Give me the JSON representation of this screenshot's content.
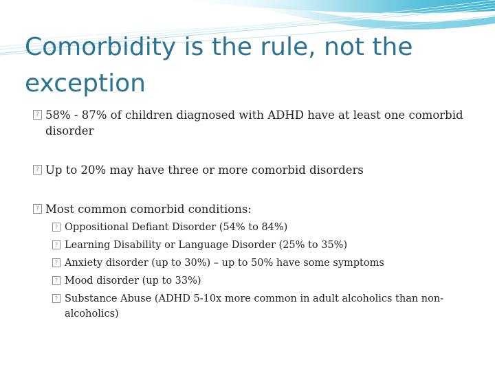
{
  "slide": {
    "title": "Comorbidity is the rule, not the exception",
    "bullets": [
      {
        "text": "58% - 87% of children diagnosed with ADHD have at least one comorbid disorder"
      },
      {
        "text": "Up to 20% may have three or more comorbid disorders"
      },
      {
        "text": "Most common comorbid conditions:"
      }
    ],
    "sub_bullets": [
      {
        "text": "Oppositional Defiant Disorder (54% to 84%)"
      },
      {
        "text": "Learning Disability or Language Disorder (25% to 35%)"
      },
      {
        "text": "Anxiety disorder (up to 30%) – up to 50% have some symptoms"
      },
      {
        "text": "Mood disorder (up to 33%)"
      },
      {
        "text": "Substance Abuse (ADHD 5-10x more common in adult alcoholics than non-alcoholics)"
      }
    ],
    "bullet_glyph": "?",
    "colors": {
      "title": "#2b7390",
      "body_text": "#222222",
      "accent": "#5fc3dc"
    }
  }
}
